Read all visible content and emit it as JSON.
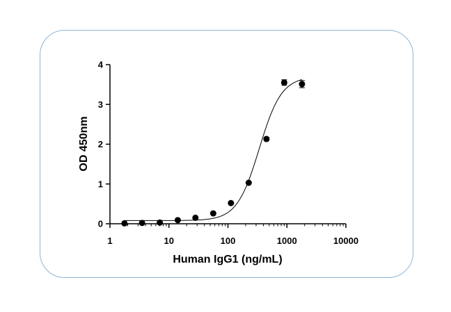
{
  "chart_data": {
    "type": "scatter",
    "title": "",
    "xlabel": "Human IgG1 (ng/mL)",
    "ylabel": "OD 450nm",
    "xscale": "log",
    "xlim": [
      1,
      10000
    ],
    "ylim": [
      0,
      4
    ],
    "x_ticks": [
      1,
      10,
      100,
      1000,
      10000
    ],
    "x_tick_labels": [
      "1",
      "10",
      "100",
      "1000",
      "10000"
    ],
    "y_ticks": [
      0,
      1,
      2,
      3,
      4
    ],
    "y_tick_labels": [
      "0",
      "1",
      "2",
      "3",
      "4"
    ],
    "grid": false,
    "legend": "none",
    "series": [
      {
        "name": "Human IgG1",
        "x": [
          1.76,
          3.5,
          7.0,
          14.1,
          28.1,
          56.3,
          112.5,
          225,
          450,
          900,
          1800
        ],
        "y": [
          0.01,
          0.02,
          0.03,
          0.09,
          0.15,
          0.26,
          0.52,
          1.03,
          2.13,
          3.55,
          3.51
        ],
        "error": [
          0.01,
          0.01,
          0.01,
          0.01,
          0.01,
          0.02,
          0.02,
          0.03,
          0.04,
          0.07,
          0.09
        ]
      }
    ],
    "fit_curve": {
      "model": "4PL",
      "bottom": 0.08,
      "top": 3.7,
      "ec50": 340,
      "hill": 2.3
    },
    "colors": {
      "points": "#000000",
      "curve": "#000000",
      "frame": "#8fb5d9"
    }
  }
}
